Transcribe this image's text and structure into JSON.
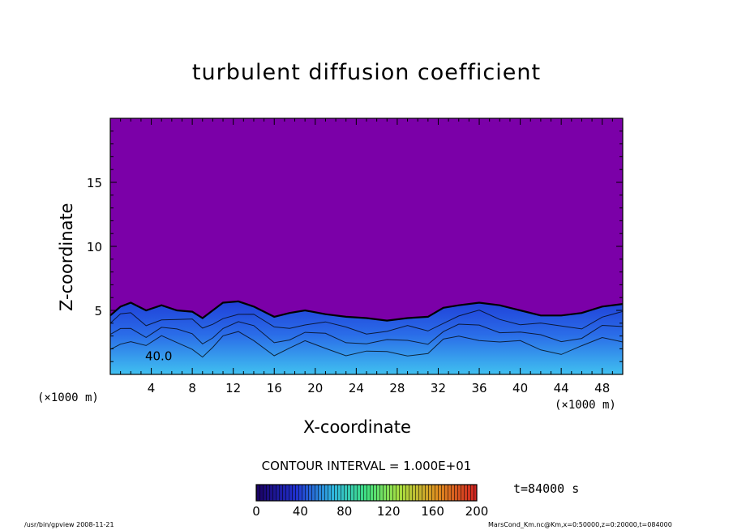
{
  "chart_data": {
    "type": "heatmap",
    "title": "turbulent diffusion coefficient",
    "xlabel": "X-coordinate",
    "ylabel": "Z-coordinate",
    "x_unit": "(×1000 m)",
    "y_unit": "(×1000 m)",
    "xlim": [
      0,
      50
    ],
    "ylim": [
      0,
      20
    ],
    "x_ticks": [
      4,
      8,
      12,
      16,
      20,
      24,
      28,
      32,
      36,
      40,
      44,
      48
    ],
    "y_ticks": [
      5,
      10,
      15
    ],
    "contour_interval": "CONTOUR INTERVAL = 1.000E+01",
    "colorbar": {
      "min": 0,
      "max": 200,
      "ticks": [
        0,
        40,
        80,
        120,
        160,
        200
      ]
    },
    "background_color": "#7b00a8",
    "boundary_layer_top": [
      {
        "x": 0.0,
        "z": 4.6
      },
      {
        "x": 1.0,
        "z": 5.3
      },
      {
        "x": 2.0,
        "z": 5.6
      },
      {
        "x": 3.5,
        "z": 5.0
      },
      {
        "x": 5.0,
        "z": 5.4
      },
      {
        "x": 6.5,
        "z": 5.0
      },
      {
        "x": 8.0,
        "z": 4.9
      },
      {
        "x": 9.0,
        "z": 4.4
      },
      {
        "x": 10.0,
        "z": 5.0
      },
      {
        "x": 11.0,
        "z": 5.6
      },
      {
        "x": 12.5,
        "z": 5.7
      },
      {
        "x": 14.0,
        "z": 5.3
      },
      {
        "x": 16.0,
        "z": 4.5
      },
      {
        "x": 17.5,
        "z": 4.8
      },
      {
        "x": 19.0,
        "z": 5.0
      },
      {
        "x": 21.0,
        "z": 4.7
      },
      {
        "x": 23.0,
        "z": 4.5
      },
      {
        "x": 25.0,
        "z": 4.4
      },
      {
        "x": 27.0,
        "z": 4.2
      },
      {
        "x": 29.0,
        "z": 4.4
      },
      {
        "x": 31.0,
        "z": 4.5
      },
      {
        "x": 32.5,
        "z": 5.2
      },
      {
        "x": 34.0,
        "z": 5.4
      },
      {
        "x": 36.0,
        "z": 5.6
      },
      {
        "x": 38.0,
        "z": 5.4
      },
      {
        "x": 40.0,
        "z": 5.0
      },
      {
        "x": 42.0,
        "z": 4.6
      },
      {
        "x": 44.0,
        "z": 4.6
      },
      {
        "x": 46.0,
        "z": 4.8
      },
      {
        "x": 48.0,
        "z": 5.3
      },
      {
        "x": 50.0,
        "z": 5.5
      }
    ],
    "contour_labels": [
      {
        "x": 3.4,
        "z": 1.1,
        "text": "40.0"
      }
    ],
    "time": "t=84000 s"
  },
  "footer": {
    "left": "/usr/bin/gpview   2008-11-21",
    "right": "MarsCond_Km.nc@Km,x=0:50000,z=0:20000,t=084000"
  }
}
